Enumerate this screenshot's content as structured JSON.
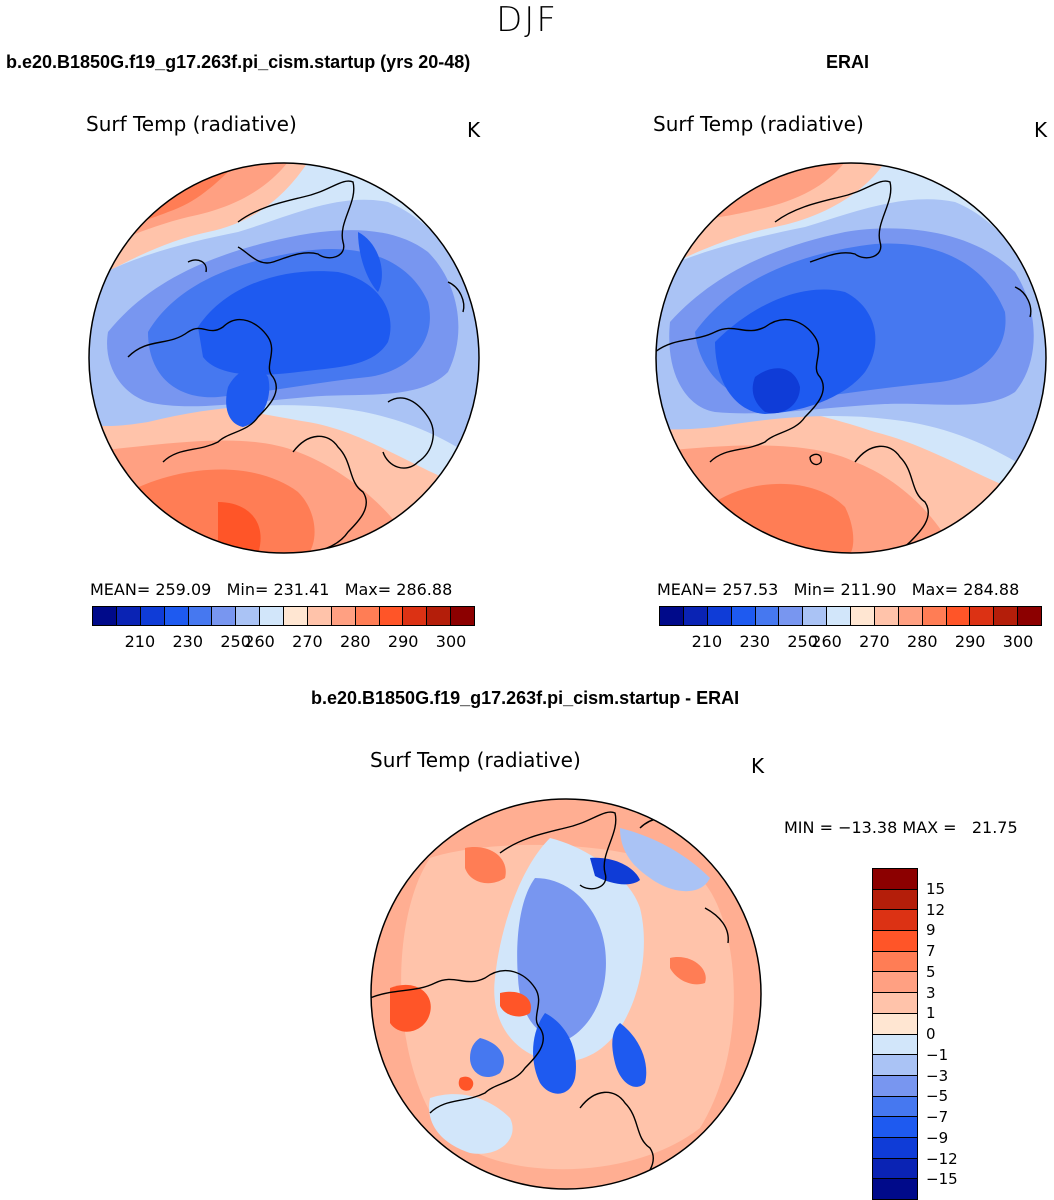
{
  "season": "DJF",
  "panels": {
    "model": {
      "case_title": "b.e20.B1850G.f19_g17.263f.pi_cism.startup (yrs 20-48)",
      "plot_title": "Surf Temp (radiative)",
      "units": "K",
      "stats": "MEAN= 259.09   Min= 231.41   Max= 286.88",
      "mean": 259.09,
      "min": 231.41,
      "max": 286.88
    },
    "obs": {
      "case_title": "ERAI",
      "plot_title": "Surf Temp (radiative)",
      "units": "K",
      "stats": "MEAN= 257.53   Min= 211.90   Max= 284.88",
      "mean": 257.53,
      "min": 211.9,
      "max": 284.88
    },
    "diff": {
      "case_title": "b.e20.B1850G.f19_g17.263f.pi_cism.startup - ERAI",
      "plot_title": "Surf Temp (radiative)",
      "units": "K",
      "stats": "MIN = −13.38 MAX =   21.75",
      "min": -13.38,
      "max": 21.75
    }
  },
  "abs_colorbar": {
    "tick_labels": [
      "210",
      "230",
      "250",
      "260",
      "270",
      "280",
      "290",
      "300"
    ],
    "colors": [
      "#000a8a",
      "#0a23b4",
      "#0f3cd7",
      "#1e5af0",
      "#4678f0",
      "#7896f0",
      "#aac3f5",
      "#d2e6fa",
      "#ffe6d2",
      "#ffc3aa",
      "#ffa082",
      "#ff7d55",
      "#ff5528",
      "#dc3214",
      "#b41e0a",
      "#8c0000"
    ]
  },
  "diff_colorbar": {
    "labels": [
      "15",
      "12",
      "9",
      "7",
      "5",
      "3",
      "1",
      "0",
      "−1",
      "−3",
      "−5",
      "−7",
      "−9",
      "−12",
      "−15"
    ],
    "colors": [
      "#8c0000",
      "#b41e0a",
      "#dc3214",
      "#ff5528",
      "#ff7d55",
      "#ffa082",
      "#ffc3aa",
      "#ffe6d2",
      "#d2e6fa",
      "#aac3f5",
      "#7896f0",
      "#4678f0",
      "#1e5af0",
      "#0f3cd7",
      "#0a23b4",
      "#000a8a"
    ]
  }
}
